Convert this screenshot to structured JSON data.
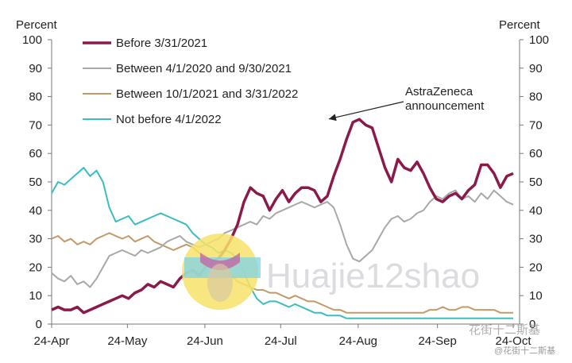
{
  "chart_data": {
    "type": "line",
    "ylabel_left": "Percent",
    "ylabel_right": "Percent",
    "ylim": [
      0,
      100
    ],
    "y_ticks": [
      0,
      10,
      20,
      30,
      40,
      50,
      60,
      70,
      80,
      90,
      100
    ],
    "x_tick_labels": [
      "24-Apr",
      "24-May",
      "24-Jun",
      "24-Jul",
      "24-Aug",
      "24-Sep",
      "24-Oct"
    ],
    "annotation": {
      "line1": "AstraZeneca",
      "line2": "announcement",
      "target_week": 15.3,
      "target_value": 71
    },
    "series": [
      {
        "name": "Before 3/31/2021",
        "color": "#8b1a4a",
        "width": 3.5,
        "values": [
          5,
          6,
          5,
          5,
          6,
          4,
          5,
          6,
          7,
          8,
          9,
          10,
          9,
          11,
          12,
          14,
          13,
          15,
          14,
          13,
          16,
          18,
          19,
          17,
          20,
          22,
          23,
          26,
          30,
          35,
          43,
          48,
          46,
          45,
          40,
          44,
          47,
          43,
          46,
          48,
          48,
          47,
          43,
          45,
          52,
          58,
          65,
          71,
          72,
          70,
          69,
          62,
          55,
          50,
          58,
          55,
          54,
          57,
          53,
          48,
          44,
          43,
          45,
          46,
          44,
          47,
          49,
          56,
          56,
          53,
          48,
          52,
          53
        ]
      },
      {
        "name": "Between 4/1/2020 and 9/30/2021",
        "color": "#a8a8a8",
        "width": 2,
        "values": [
          18,
          16,
          15,
          17,
          14,
          15,
          13,
          16,
          20,
          24,
          25,
          26,
          25,
          24,
          26,
          25,
          26,
          27,
          29,
          30,
          31,
          29,
          28,
          27,
          28,
          29,
          30,
          32,
          33,
          34,
          35,
          36,
          35,
          38,
          37,
          39,
          40,
          41,
          42,
          43,
          42,
          41,
          42,
          43,
          41,
          35,
          28,
          23,
          22,
          24,
          26,
          30,
          34,
          37,
          38,
          36,
          37,
          39,
          40,
          43,
          45,
          44,
          46,
          47,
          44,
          45,
          43,
          46,
          44,
          47,
          45,
          43,
          42
        ]
      },
      {
        "name": "Between 10/1/2021 and 3/31/2022",
        "color": "#c4996a",
        "width": 2,
        "values": [
          30,
          31,
          29,
          30,
          28,
          29,
          28,
          30,
          31,
          32,
          31,
          30,
          31,
          29,
          30,
          31,
          29,
          28,
          27,
          26,
          27,
          28,
          27,
          25,
          24,
          22,
          21,
          18,
          17,
          15,
          14,
          13,
          12,
          12,
          11,
          11,
          10,
          9,
          10,
          9,
          8,
          8,
          7,
          6,
          5,
          5,
          4,
          4,
          4,
          4,
          4,
          4,
          4,
          4,
          4,
          4,
          4,
          4,
          4,
          5,
          5,
          6,
          5,
          5,
          6,
          6,
          5,
          5,
          5,
          5,
          4,
          4,
          4
        ]
      },
      {
        "name": "Not before 4/1/2022",
        "color": "#3bbdc0",
        "width": 2,
        "values": [
          46,
          50,
          49,
          51,
          53,
          55,
          52,
          54,
          50,
          41,
          36,
          37,
          38,
          35,
          36,
          37,
          38,
          39,
          38,
          37,
          36,
          35,
          32,
          30,
          28,
          27,
          25,
          26,
          25,
          23,
          18,
          13,
          9,
          7,
          8,
          8,
          7,
          6,
          7,
          6,
          5,
          4,
          4,
          3,
          3,
          3,
          2,
          2,
          2,
          2,
          2,
          2,
          2,
          2,
          2,
          2,
          2,
          2,
          2,
          2,
          2,
          2,
          2,
          2,
          2,
          2,
          2,
          2,
          2,
          2,
          2,
          2,
          2
        ]
      }
    ]
  },
  "watermark": {
    "main": "Huajie12shao",
    "brand": "花街十二斯基",
    "brand_sub": "@花街十二斯基"
  },
  "colors": {
    "watermark_circle": "#f7e36a",
    "watermark_band": "#7fd3e8",
    "watermark_ribbon": "#c06fa8"
  }
}
